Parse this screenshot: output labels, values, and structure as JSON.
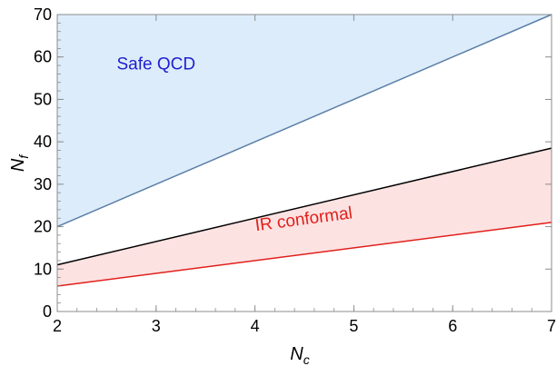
{
  "chart_data": {
    "type": "area",
    "xlim": [
      2,
      7
    ],
    "ylim": [
      0,
      70
    ],
    "xticks": [
      2,
      3,
      4,
      5,
      6,
      7
    ],
    "yticks": [
      0,
      10,
      20,
      30,
      40,
      50,
      60,
      70
    ],
    "xlabel": "N",
    "xlabel_sub": "c",
    "ylabel": "N",
    "ylabel_sub": "f",
    "grid": false,
    "regions": [
      {
        "name": "Safe QCD",
        "color": "#dcecfb",
        "lower": {
          "x": [
            2,
            7
          ],
          "y": [
            20,
            70
          ],
          "stroke": "#5b7fa6"
        },
        "upper": {
          "x": [
            2,
            7
          ],
          "y": [
            70,
            70
          ]
        }
      },
      {
        "name": "IR conformal",
        "color": "#fde2e2",
        "lower": {
          "x": [
            2,
            7
          ],
          "y": [
            6,
            21
          ],
          "stroke": "#e0201b"
        },
        "upper": {
          "x": [
            2,
            7
          ],
          "y": [
            11,
            38.5
          ],
          "stroke": "#000000"
        }
      }
    ],
    "annotations": [
      {
        "text": "Safe QCD",
        "x": 3.0,
        "y": 57,
        "color": "#1f1fd0"
      },
      {
        "text": "IR conformal",
        "x": 4.5,
        "y": 20.5,
        "color": "#e0201b"
      }
    ]
  }
}
